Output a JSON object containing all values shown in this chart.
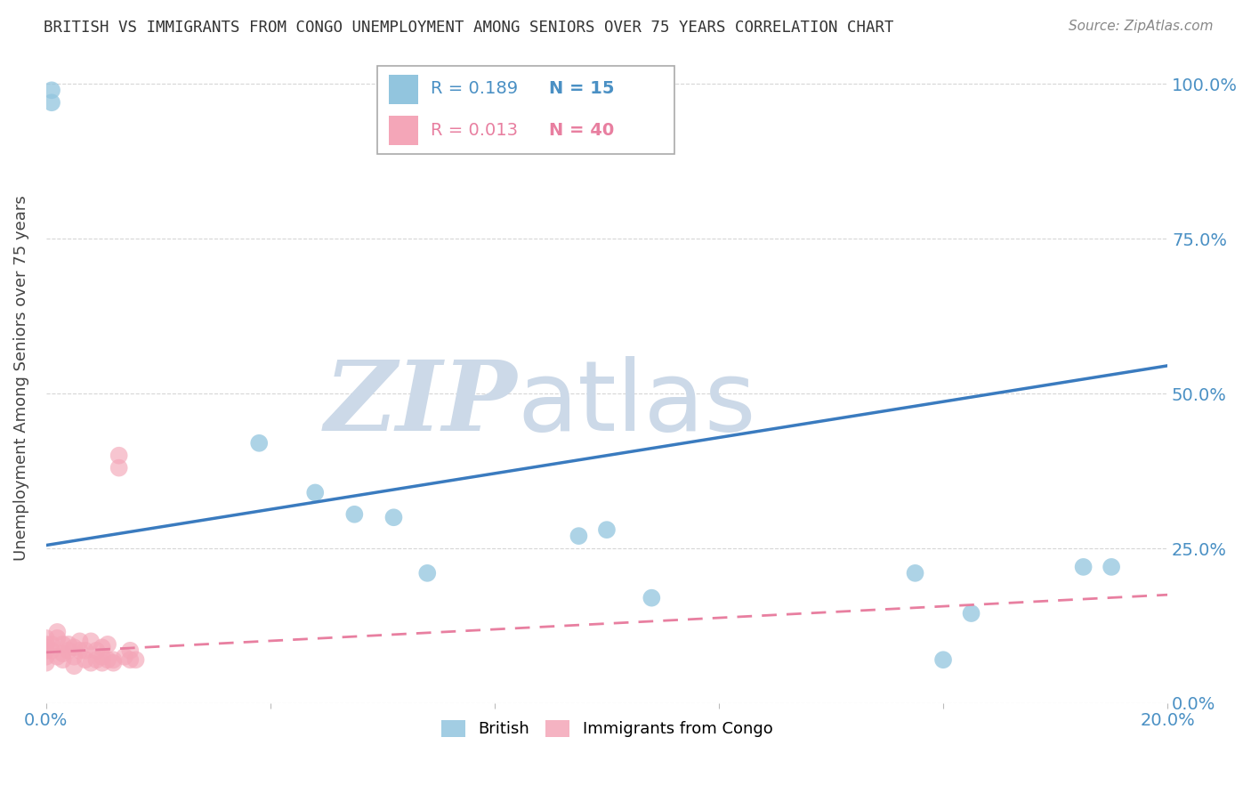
{
  "title": "BRITISH VS IMMIGRANTS FROM CONGO UNEMPLOYMENT AMONG SENIORS OVER 75 YEARS CORRELATION CHART",
  "source": "Source: ZipAtlas.com",
  "ylabel": "Unemployment Among Seniors over 75 years",
  "xlim": [
    0.0,
    0.2
  ],
  "ylim": [
    0.0,
    1.05
  ],
  "xticks": [
    0.0,
    0.04,
    0.08,
    0.12,
    0.16,
    0.2
  ],
  "yticks": [
    0.0,
    0.25,
    0.5,
    0.75,
    1.0
  ],
  "british_R": 0.189,
  "british_N": 15,
  "congo_R": 0.013,
  "congo_N": 40,
  "british_color": "#92c5de",
  "congo_color": "#f4a6b8",
  "british_line_color": "#3a7bbf",
  "congo_line_color": "#e87fa0",
  "watermark_color": "#ccd9e8",
  "british_x": [
    0.001,
    0.001,
    0.038,
    0.048,
    0.055,
    0.062,
    0.068,
    0.095,
    0.1,
    0.108,
    0.155,
    0.16,
    0.165,
    0.185,
    0.19
  ],
  "british_y": [
    0.97,
    0.99,
    0.42,
    0.34,
    0.305,
    0.3,
    0.21,
    0.27,
    0.28,
    0.17,
    0.21,
    0.07,
    0.145,
    0.22,
    0.22
  ],
  "congo_x": [
    0.0,
    0.0,
    0.0,
    0.0,
    0.0,
    0.0,
    0.001,
    0.001,
    0.002,
    0.002,
    0.002,
    0.003,
    0.003,
    0.003,
    0.004,
    0.004,
    0.005,
    0.005,
    0.005,
    0.006,
    0.006,
    0.007,
    0.007,
    0.008,
    0.008,
    0.009,
    0.009,
    0.01,
    0.01,
    0.01,
    0.011,
    0.011,
    0.012,
    0.012,
    0.013,
    0.013,
    0.014,
    0.015,
    0.015,
    0.016
  ],
  "congo_y": [
    0.085,
    0.09,
    0.095,
    0.105,
    0.075,
    0.065,
    0.095,
    0.085,
    0.105,
    0.115,
    0.075,
    0.08,
    0.07,
    0.095,
    0.085,
    0.095,
    0.075,
    0.09,
    0.06,
    0.085,
    0.1,
    0.07,
    0.085,
    0.065,
    0.1,
    0.07,
    0.085,
    0.065,
    0.075,
    0.09,
    0.07,
    0.095,
    0.065,
    0.07,
    0.38,
    0.4,
    0.075,
    0.07,
    0.085,
    0.07
  ],
  "blue_line_x0": 0.0,
  "blue_line_y0": 0.255,
  "blue_line_x1": 0.2,
  "blue_line_y1": 0.545,
  "pink_line_x0": 0.0,
  "pink_line_y0": 0.082,
  "pink_line_x1": 0.2,
  "pink_line_y1": 0.175
}
